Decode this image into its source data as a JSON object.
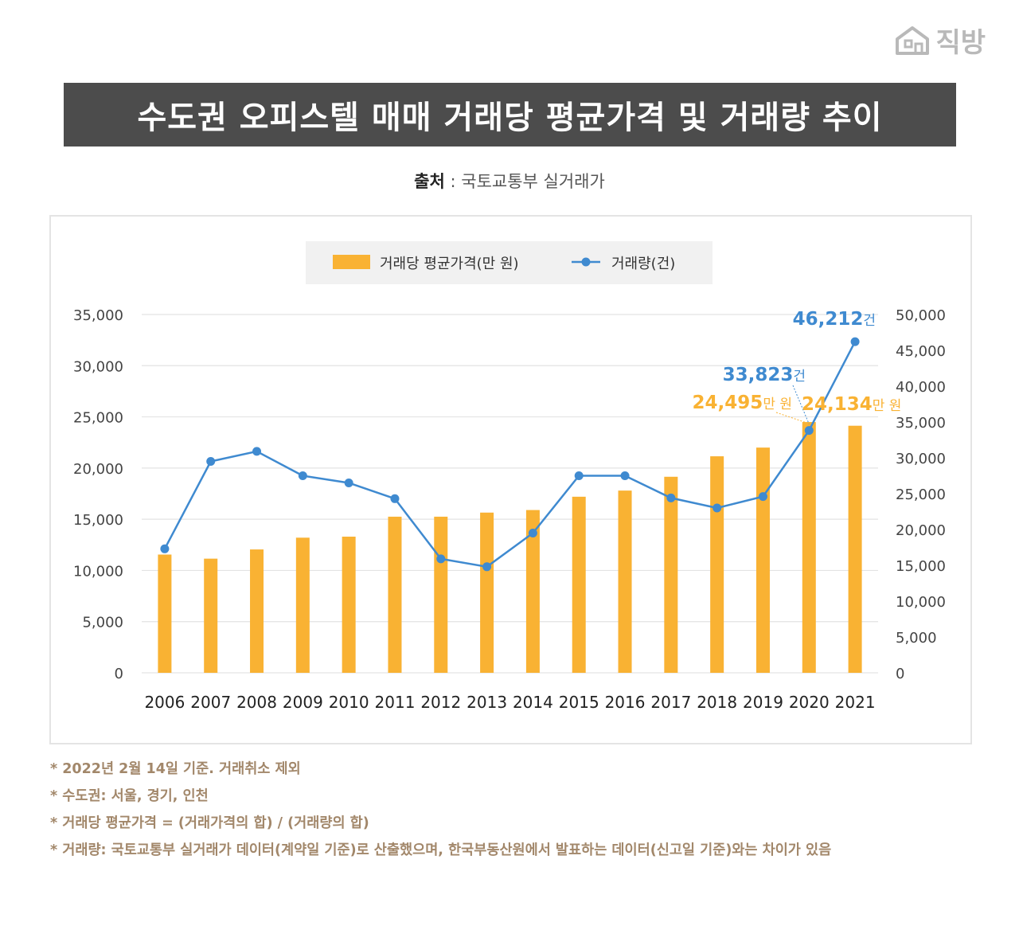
{
  "brand": {
    "name": "직방",
    "icon": "house-logo-icon"
  },
  "title": "수도권 오피스텔 매매 거래당 평균가격 및 거래량 추이",
  "source": {
    "label": "출처",
    "separator": " : ",
    "value": "국토교통부 실거래가"
  },
  "chart_data": {
    "type": "bar+line",
    "categories": [
      "2006",
      "2007",
      "2008",
      "2009",
      "2010",
      "2011",
      "2012",
      "2013",
      "2014",
      "2015",
      "2016",
      "2017",
      "2018",
      "2019",
      "2020",
      "2021"
    ],
    "series": [
      {
        "name": "거래당 평균가격(만 원)",
        "type": "bar",
        "axis": "left",
        "color": "#f9b233",
        "values": [
          11550,
          11150,
          12050,
          13200,
          13300,
          15250,
          15250,
          15650,
          15900,
          17200,
          17800,
          19150,
          21150,
          22000,
          24495,
          24134
        ]
      },
      {
        "name": "거래량(건)",
        "type": "line",
        "axis": "right",
        "color": "#3f8ad0",
        "values": [
          17300,
          29500,
          30900,
          27500,
          26500,
          24300,
          15900,
          14800,
          19500,
          27500,
          27500,
          24400,
          23000,
          24600,
          33823,
          46212
        ]
      }
    ],
    "left_axis": {
      "min": 0,
      "max": 35000,
      "step": 5000,
      "ticks": [
        "0",
        "5,000",
        "10,000",
        "15,000",
        "20,000",
        "25,000",
        "30,000",
        "35,000"
      ]
    },
    "right_axis": {
      "min": 0,
      "max": 50000,
      "step": 5000,
      "ticks": [
        "0",
        "5,000",
        "10,000",
        "15,000",
        "20,000",
        "25,000",
        "30,000",
        "35,000",
        "40,000",
        "45,000",
        "50,000"
      ]
    },
    "grid": true,
    "legend_position": "top-center",
    "annotations": [
      {
        "category": "2020",
        "series": "거래량(건)",
        "number": "33,823",
        "unit": "건"
      },
      {
        "category": "2021",
        "series": "거래량(건)",
        "number": "46,212",
        "unit": "건"
      },
      {
        "category": "2020",
        "series": "거래당 평균가격(만 원)",
        "number": "24,495",
        "unit": "만 원"
      },
      {
        "category": "2021",
        "series": "거래당 평균가격(만 원)",
        "number": "24,134",
        "unit": "만 원"
      }
    ]
  },
  "notes": [
    "* 2022년 2월 14일 기준. 거래취소 제외",
    "* 수도권: 서울, 경기, 인천",
    "* 거래당 평균가격 = (거래가격의 합) / (거래량의 합)",
    "* 거래량: 국토교통부 실거래가 데이터(계약일 기준)로 산출했으며, 한국부동산원에서 발표하는 데이터(신고일 기준)와는 차이가 있음"
  ]
}
